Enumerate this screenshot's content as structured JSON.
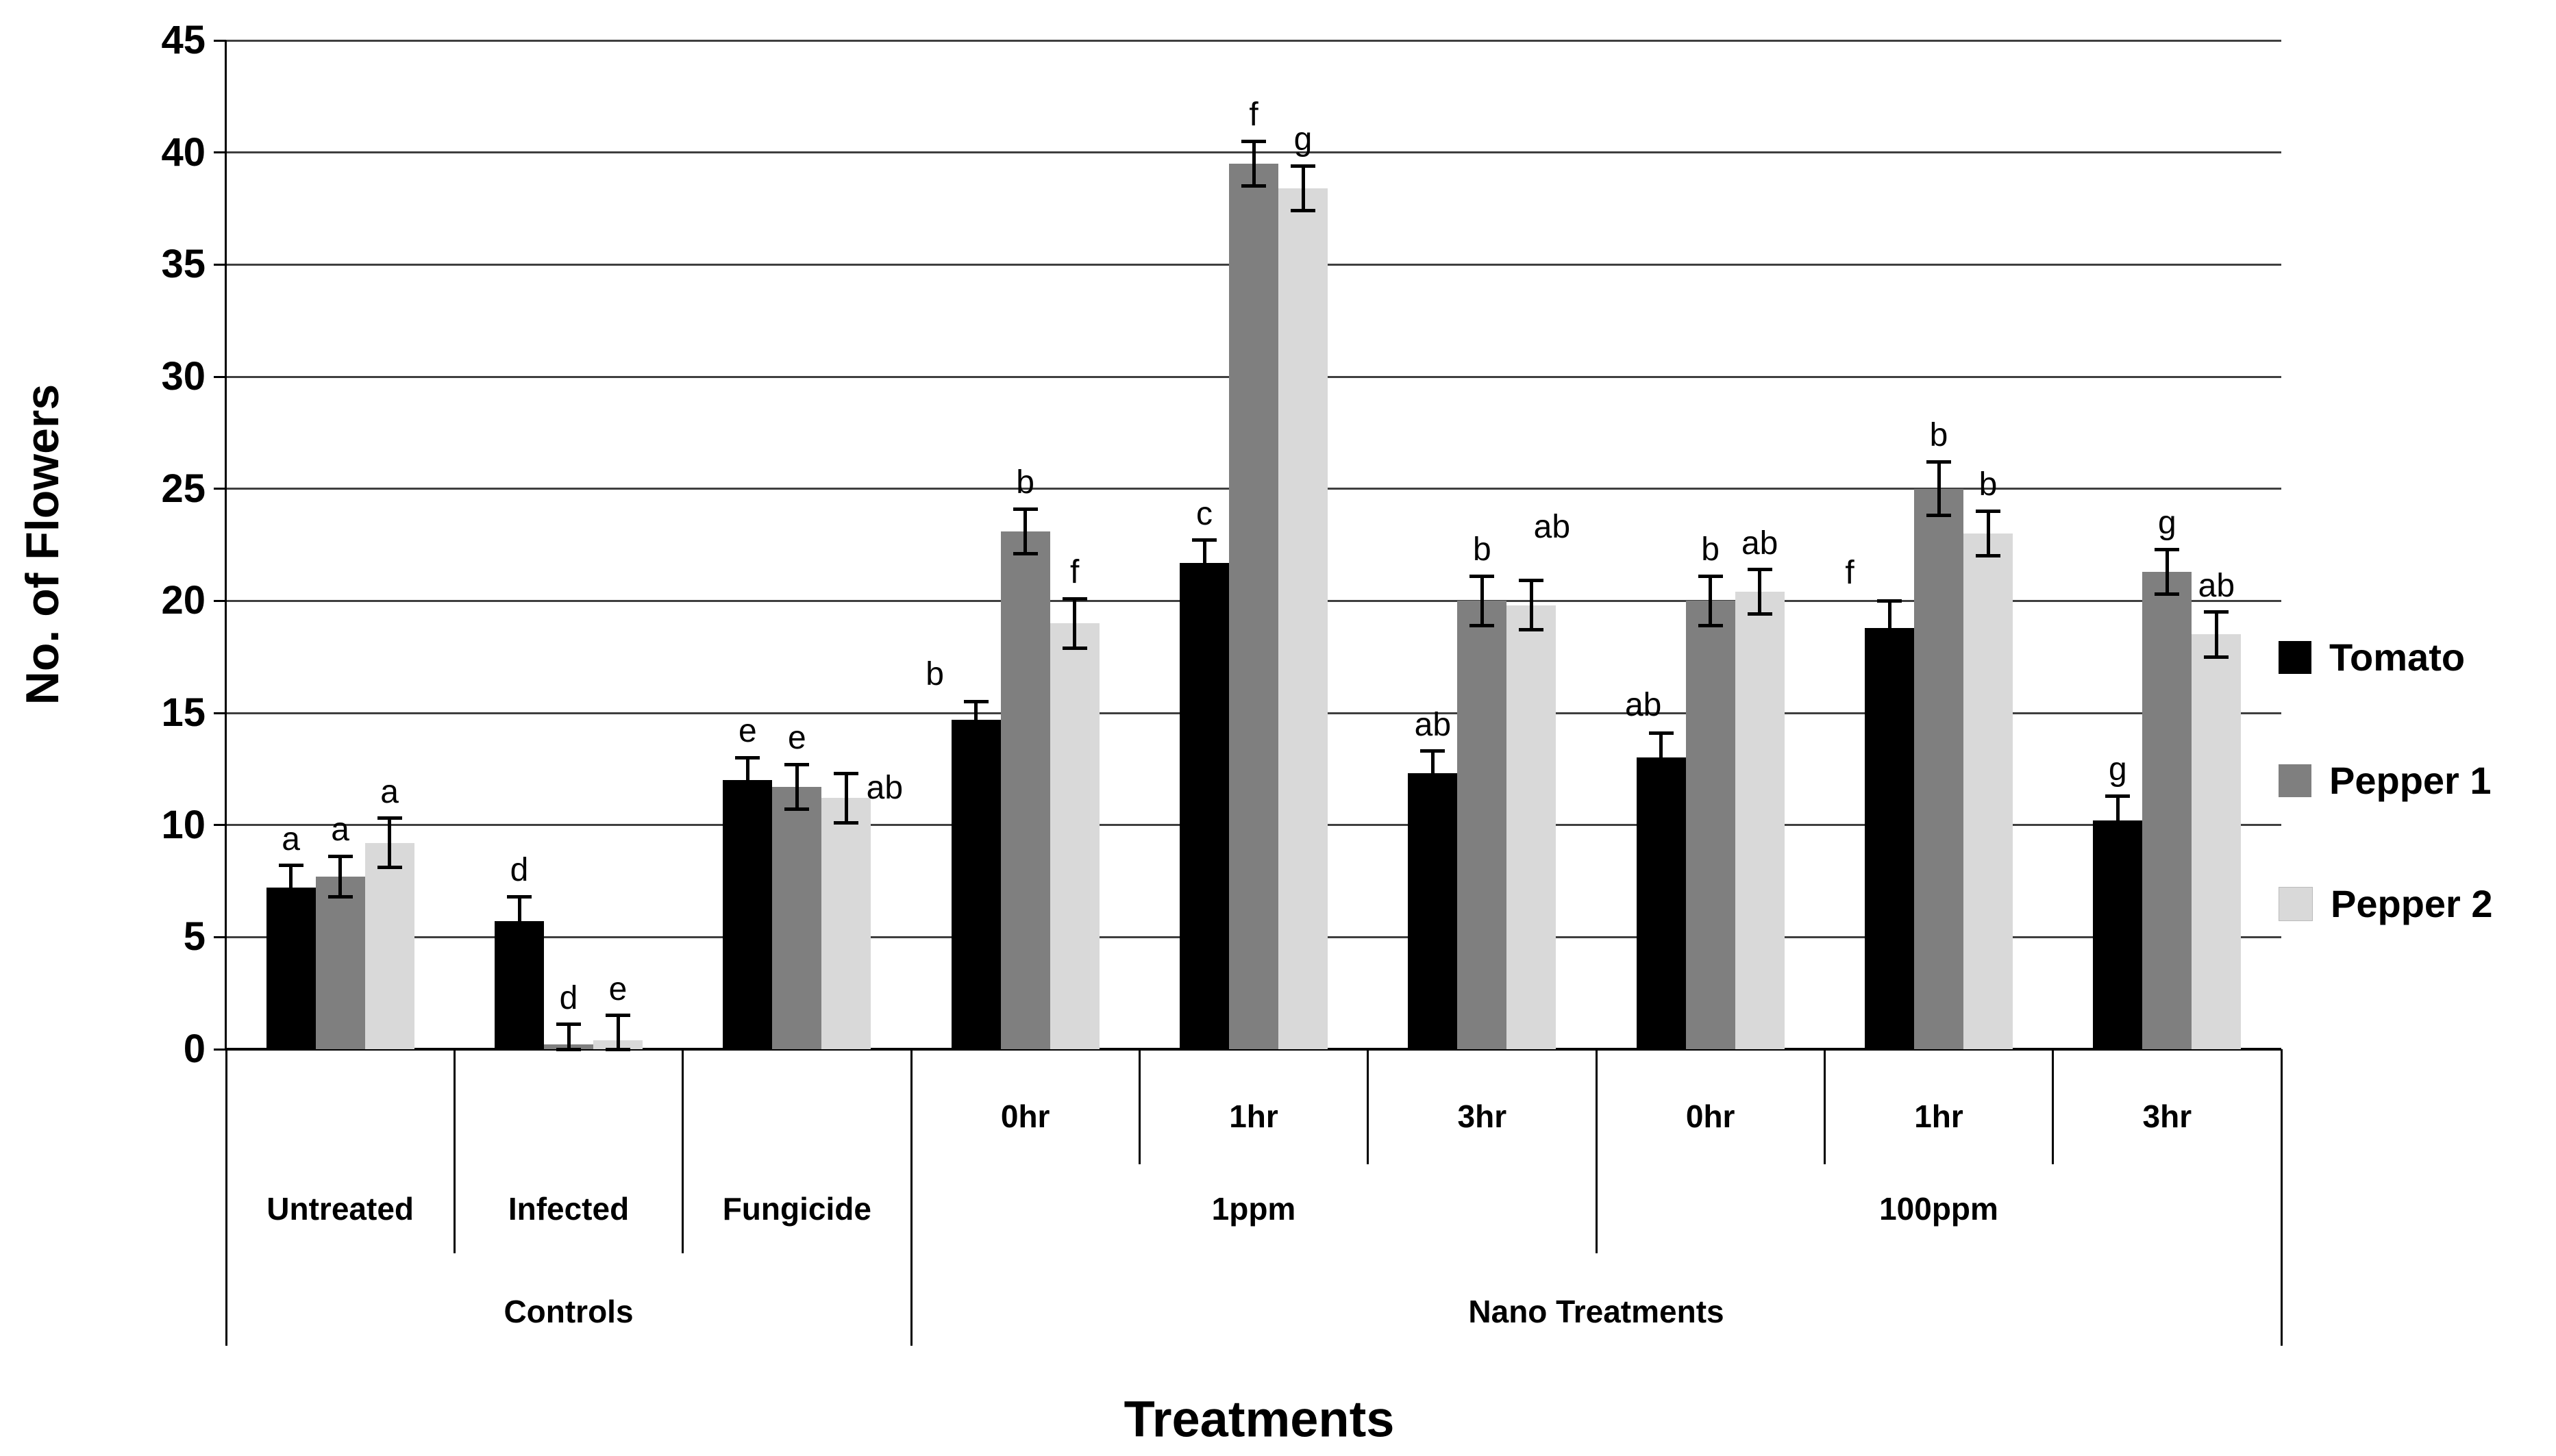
{
  "page": {
    "background": "#ffffff"
  },
  "chart_data": {
    "type": "bar",
    "title": "",
    "xlabel": "Treatments",
    "ylabel": "No. of Flowers",
    "ylim": [
      0,
      45
    ],
    "ytick_step": 5,
    "grid": true,
    "legend_position": "right",
    "categories_row1": [
      "",
      "",
      "",
      "0hr",
      "1hr",
      "3hr",
      "0hr",
      "1hr",
      "3hr"
    ],
    "categories_row2": [
      {
        "label": "Untreated",
        "span": 1
      },
      {
        "label": "Infected",
        "span": 1
      },
      {
        "label": "Fungicide",
        "span": 1
      },
      {
        "label": "1ppm",
        "span": 3
      },
      {
        "label": "100ppm",
        "span": 3
      }
    ],
    "categories_row3": [
      {
        "label": "Controls",
        "span": 3
      },
      {
        "label": "Nano Treatments",
        "span": 6
      }
    ],
    "series": [
      {
        "name": "Tomato",
        "color": "#000000",
        "values": [
          7.2,
          5.7,
          12.0,
          14.7,
          21.7,
          12.3,
          13.0,
          18.8,
          10.2
        ],
        "errors": [
          1.0,
          1.1,
          1.0,
          0.8,
          1.0,
          1.0,
          1.1,
          1.2,
          1.1
        ],
        "letters": [
          "a",
          "d",
          "e",
          "b",
          "c",
          "ab",
          "ab",
          "f",
          "g"
        ]
      },
      {
        "name": "Pepper 1",
        "color": "#7f7f7f",
        "values": [
          7.7,
          0.2,
          11.7,
          23.1,
          39.5,
          20.0,
          20.0,
          25.0,
          21.3
        ],
        "errors": [
          0.9,
          0.9,
          1.0,
          1.0,
          1.0,
          1.1,
          1.1,
          1.2,
          1.0
        ],
        "letters": [
          "a",
          "d",
          "e",
          "b",
          "f",
          "b",
          "b",
          "b",
          "g"
        ]
      },
      {
        "name": "Pepper 2",
        "color": "#d9d9d9",
        "values": [
          9.2,
          0.4,
          11.2,
          19.0,
          38.4,
          19.8,
          20.4,
          23.0,
          18.5
        ],
        "errors": [
          1.1,
          1.1,
          1.1,
          1.1,
          1.0,
          1.1,
          1.0,
          1.0,
          1.0
        ],
        "letters": [
          "a",
          "e",
          "ab",
          "f",
          "g",
          "ab",
          "ab",
          "b",
          "ab"
        ]
      }
    ],
    "letter_offsets": {
      "0,3": [
        -60,
        -2
      ],
      "0,6": [
        -26,
        -2
      ],
      "0,7": [
        -58,
        -2
      ],
      "2,2": [
        56,
        60
      ],
      "2,5": [
        30,
        -40
      ]
    }
  }
}
